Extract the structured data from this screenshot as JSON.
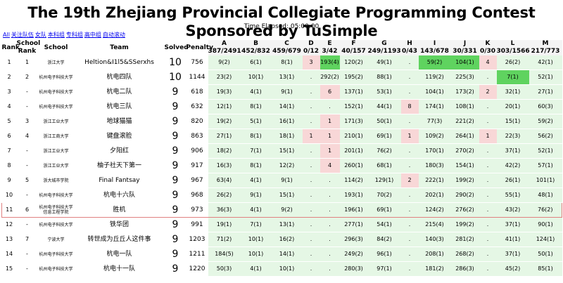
{
  "title": "The 19th Zhejiang Provincial Collegiate Programming Contest Sponsored by TuSimple",
  "elapsed": "Time Elapsed: 05:00:00",
  "filters": [
    "All",
    "关注队伍",
    "女队",
    "本科组",
    "专科组",
    "高中组",
    "自动滚动"
  ],
  "headers": {
    "rank": "Rank",
    "school_rank_1": "School",
    "school_rank_2": "Rank",
    "school": "School",
    "team": "Team",
    "solved": "Solved",
    "penalty": "Penalty"
  },
  "problems": [
    {
      "id": "A",
      "stat": "387/2491"
    },
    {
      "id": "B",
      "stat": "452/832"
    },
    {
      "id": "C",
      "stat": "459/679"
    },
    {
      "id": "D",
      "stat": "0/12"
    },
    {
      "id": "E",
      "stat": "3/42"
    },
    {
      "id": "F",
      "stat": "40/157"
    },
    {
      "id": "G",
      "stat": "249/1193"
    },
    {
      "id": "H",
      "stat": "0/43"
    },
    {
      "id": "I",
      "stat": "143/678"
    },
    {
      "id": "J",
      "stat": "30/331"
    },
    {
      "id": "K",
      "stat": "0/30"
    },
    {
      "id": "L",
      "stat": "303/1566"
    },
    {
      "id": "M",
      "stat": "217/773"
    }
  ],
  "colors": {
    "accepted": "#e5f7e5",
    "first_blood": "#5fd35f",
    "wrong": "#f8d7d7",
    "highlight_border": "#e08080"
  },
  "rows": [
    {
      "rank": "1",
      "srank": "1",
      "school": "浙江大学",
      "team": "Heltion&I1l5&SSerxhs",
      "solved": "10",
      "penalty": "756",
      "cells": [
        [
          "9(2)",
          "a"
        ],
        [
          "6(1)",
          "a"
        ],
        [
          "8(1)",
          "a"
        ],
        [
          "3",
          "w"
        ],
        [
          "193(4)",
          "f"
        ],
        [
          "120(2)",
          "a"
        ],
        [
          "49(1)",
          "a"
        ],
        [
          ".",
          "n"
        ],
        [
          "59(2)",
          "f"
        ],
        [
          "104(1)",
          "f"
        ],
        [
          "4",
          "w"
        ],
        [
          "26(2)",
          "a"
        ],
        [
          "42(1)",
          "a"
        ]
      ]
    },
    {
      "rank": "2",
      "srank": "2",
      "school": "杭州电子科技大学",
      "team": "杭电四队",
      "solved": "10",
      "penalty": "1144",
      "cells": [
        [
          "23(2)",
          "a"
        ],
        [
          "10(1)",
          "a"
        ],
        [
          "13(1)",
          "a"
        ],
        [
          ".",
          "n"
        ],
        [
          "292(2)",
          "a"
        ],
        [
          "195(2)",
          "a"
        ],
        [
          "88(1)",
          "a"
        ],
        [
          ".",
          "n"
        ],
        [
          "119(2)",
          "a"
        ],
        [
          "225(3)",
          "a"
        ],
        [
          ".",
          "n"
        ],
        [
          "7(1)",
          "f"
        ],
        [
          "52(1)",
          "a"
        ]
      ]
    },
    {
      "rank": "3",
      "srank": "-",
      "school": "杭州电子科技大学",
      "team": "杭电二队",
      "solved": "9",
      "penalty": "618",
      "cells": [
        [
          "19(3)",
          "a"
        ],
        [
          "4(1)",
          "a"
        ],
        [
          "9(1)",
          "a"
        ],
        [
          ".",
          "n"
        ],
        [
          "6",
          "w"
        ],
        [
          "137(1)",
          "a"
        ],
        [
          "53(1)",
          "a"
        ],
        [
          ".",
          "n"
        ],
        [
          "104(1)",
          "a"
        ],
        [
          "173(2)",
          "a"
        ],
        [
          "2",
          "w"
        ],
        [
          "32(1)",
          "a"
        ],
        [
          "27(1)",
          "a"
        ]
      ]
    },
    {
      "rank": "4",
      "srank": "-",
      "school": "杭州电子科技大学",
      "team": "杭电三队",
      "solved": "9",
      "penalty": "632",
      "cells": [
        [
          "12(1)",
          "a"
        ],
        [
          "8(1)",
          "a"
        ],
        [
          "14(1)",
          "a"
        ],
        [
          ".",
          "n"
        ],
        [
          ".",
          "n"
        ],
        [
          "152(1)",
          "a"
        ],
        [
          "44(1)",
          "a"
        ],
        [
          "8",
          "w"
        ],
        [
          "174(1)",
          "a"
        ],
        [
          "108(1)",
          "a"
        ],
        [
          ".",
          "n"
        ],
        [
          "20(1)",
          "a"
        ],
        [
          "60(3)",
          "a"
        ]
      ]
    },
    {
      "rank": "5",
      "srank": "3",
      "school": "浙江工业大学",
      "team": "地球猫猫",
      "solved": "9",
      "penalty": "820",
      "cells": [
        [
          "19(2)",
          "a"
        ],
        [
          "5(1)",
          "a"
        ],
        [
          "16(1)",
          "a"
        ],
        [
          ".",
          "n"
        ],
        [
          "1",
          "w"
        ],
        [
          "171(3)",
          "a"
        ],
        [
          "50(1)",
          "a"
        ],
        [
          ".",
          "n"
        ],
        [
          "77(3)",
          "a"
        ],
        [
          "221(2)",
          "a"
        ],
        [
          ".",
          "n"
        ],
        [
          "15(1)",
          "a"
        ],
        [
          "59(2)",
          "a"
        ]
      ]
    },
    {
      "rank": "6",
      "srank": "4",
      "school": "浙江工商大学",
      "team": "键盘滚脸",
      "solved": "9",
      "penalty": "863",
      "cells": [
        [
          "27(1)",
          "a"
        ],
        [
          "8(1)",
          "a"
        ],
        [
          "18(1)",
          "a"
        ],
        [
          "1",
          "w"
        ],
        [
          "1",
          "w"
        ],
        [
          "210(1)",
          "a"
        ],
        [
          "69(1)",
          "a"
        ],
        [
          "1",
          "w"
        ],
        [
          "109(2)",
          "a"
        ],
        [
          "264(1)",
          "a"
        ],
        [
          "1",
          "w"
        ],
        [
          "22(3)",
          "a"
        ],
        [
          "56(2)",
          "a"
        ]
      ]
    },
    {
      "rank": "7",
      "srank": "-",
      "school": "浙江工业大学",
      "team": "夕阳红",
      "solved": "9",
      "penalty": "906",
      "cells": [
        [
          "18(2)",
          "a"
        ],
        [
          "7(1)",
          "a"
        ],
        [
          "15(1)",
          "a"
        ],
        [
          ".",
          "n"
        ],
        [
          "1",
          "w"
        ],
        [
          "201(1)",
          "a"
        ],
        [
          "76(2)",
          "a"
        ],
        [
          ".",
          "n"
        ],
        [
          "170(1)",
          "a"
        ],
        [
          "270(2)",
          "a"
        ],
        [
          ".",
          "n"
        ],
        [
          "37(1)",
          "a"
        ],
        [
          "52(1)",
          "a"
        ]
      ]
    },
    {
      "rank": "8",
      "srank": "-",
      "school": "浙江工业大学",
      "team": "柚子社天下第一",
      "solved": "9",
      "penalty": "917",
      "cells": [
        [
          "16(3)",
          "a"
        ],
        [
          "8(1)",
          "a"
        ],
        [
          "12(2)",
          "a"
        ],
        [
          ".",
          "n"
        ],
        [
          "4",
          "w"
        ],
        [
          "260(1)",
          "a"
        ],
        [
          "68(1)",
          "a"
        ],
        [
          ".",
          "n"
        ],
        [
          "180(3)",
          "a"
        ],
        [
          "154(1)",
          "a"
        ],
        [
          ".",
          "n"
        ],
        [
          "42(2)",
          "a"
        ],
        [
          "57(1)",
          "a"
        ]
      ]
    },
    {
      "rank": "9",
      "srank": "5",
      "school": "浙大城市学院",
      "team": "Final Fantsay",
      "solved": "9",
      "penalty": "967",
      "cells": [
        [
          "63(4)",
          "a"
        ],
        [
          "4(1)",
          "a"
        ],
        [
          "9(1)",
          "a"
        ],
        [
          ".",
          "n"
        ],
        [
          ".",
          "n"
        ],
        [
          "114(2)",
          "a"
        ],
        [
          "129(1)",
          "a"
        ],
        [
          "2",
          "w"
        ],
        [
          "222(1)",
          "a"
        ],
        [
          "199(2)",
          "a"
        ],
        [
          ".",
          "n"
        ],
        [
          "26(1)",
          "a"
        ],
        [
          "101(1)",
          "a"
        ]
      ]
    },
    {
      "rank": "10",
      "srank": "-",
      "school": "杭州电子科技大学",
      "team": "杭电十六队",
      "solved": "9",
      "penalty": "968",
      "cells": [
        [
          "26(2)",
          "a"
        ],
        [
          "9(1)",
          "a"
        ],
        [
          "15(1)",
          "a"
        ],
        [
          ".",
          "n"
        ],
        [
          ".",
          "n"
        ],
        [
          "193(1)",
          "a"
        ],
        [
          "70(2)",
          "a"
        ],
        [
          ".",
          "n"
        ],
        [
          "202(1)",
          "a"
        ],
        [
          "290(2)",
          "a"
        ],
        [
          ".",
          "n"
        ],
        [
          "55(1)",
          "a"
        ],
        [
          "48(1)",
          "a"
        ]
      ]
    },
    {
      "rank": "11",
      "srank": "6",
      "school": "杭州电子科技大学信息工程学院",
      "team": "胜机",
      "solved": "9",
      "penalty": "973",
      "highlight": true,
      "cells": [
        [
          "36(3)",
          "a"
        ],
        [
          "4(1)",
          "a"
        ],
        [
          "9(2)",
          "a"
        ],
        [
          ".",
          "n"
        ],
        [
          ".",
          "n"
        ],
        [
          "196(1)",
          "a"
        ],
        [
          "69(1)",
          "a"
        ],
        [
          ".",
          "n"
        ],
        [
          "124(2)",
          "a"
        ],
        [
          "276(2)",
          "a"
        ],
        [
          ".",
          "n"
        ],
        [
          "43(2)",
          "a"
        ],
        [
          "76(2)",
          "a"
        ]
      ]
    },
    {
      "rank": "12",
      "srank": "-",
      "school": "杭州电子科技大学",
      "team": "铁华团",
      "solved": "9",
      "penalty": "991",
      "cells": [
        [
          "19(1)",
          "a"
        ],
        [
          "7(1)",
          "a"
        ],
        [
          "13(1)",
          "a"
        ],
        [
          ".",
          "n"
        ],
        [
          ".",
          "n"
        ],
        [
          "277(1)",
          "a"
        ],
        [
          "54(1)",
          "a"
        ],
        [
          ".",
          "n"
        ],
        [
          "215(4)",
          "a"
        ],
        [
          "199(2)",
          "a"
        ],
        [
          ".",
          "n"
        ],
        [
          "37(1)",
          "a"
        ],
        [
          "90(1)",
          "a"
        ]
      ]
    },
    {
      "rank": "13",
      "srank": "7",
      "school": "宁波大学",
      "team": "转世成为丘丘人这件事",
      "solved": "9",
      "penalty": "1203",
      "cells": [
        [
          "71(2)",
          "a"
        ],
        [
          "10(1)",
          "a"
        ],
        [
          "16(2)",
          "a"
        ],
        [
          ".",
          "n"
        ],
        [
          ".",
          "n"
        ],
        [
          "296(3)",
          "a"
        ],
        [
          "84(2)",
          "a"
        ],
        [
          ".",
          "n"
        ],
        [
          "140(3)",
          "a"
        ],
        [
          "281(2)",
          "a"
        ],
        [
          ".",
          "n"
        ],
        [
          "41(1)",
          "a"
        ],
        [
          "124(1)",
          "a"
        ]
      ]
    },
    {
      "rank": "14",
      "srank": "-",
      "school": "杭州电子科技大学",
      "team": "杭电一队",
      "solved": "9",
      "penalty": "1211",
      "cells": [
        [
          "184(5)",
          "a"
        ],
        [
          "10(1)",
          "a"
        ],
        [
          "14(1)",
          "a"
        ],
        [
          ".",
          "n"
        ],
        [
          ".",
          "n"
        ],
        [
          "249(2)",
          "a"
        ],
        [
          "96(1)",
          "a"
        ],
        [
          ".",
          "n"
        ],
        [
          "208(1)",
          "a"
        ],
        [
          "268(2)",
          "a"
        ],
        [
          ".",
          "n"
        ],
        [
          "37(1)",
          "a"
        ],
        [
          "50(1)",
          "a"
        ]
      ]
    },
    {
      "rank": "15",
      "srank": "-",
      "school": "杭州电子科技大学",
      "team": "杭电十一队",
      "solved": "9",
      "penalty": "1220",
      "cells": [
        [
          "50(3)",
          "a"
        ],
        [
          "4(1)",
          "a"
        ],
        [
          "10(1)",
          "a"
        ],
        [
          ".",
          "n"
        ],
        [
          ".",
          "n"
        ],
        [
          "280(3)",
          "a"
        ],
        [
          "97(1)",
          "a"
        ],
        [
          ".",
          "n"
        ],
        [
          "181(2)",
          "a"
        ],
        [
          "286(3)",
          "a"
        ],
        [
          ".",
          "n"
        ],
        [
          "45(2)",
          "a"
        ],
        [
          "85(1)",
          "a"
        ]
      ]
    }
  ]
}
